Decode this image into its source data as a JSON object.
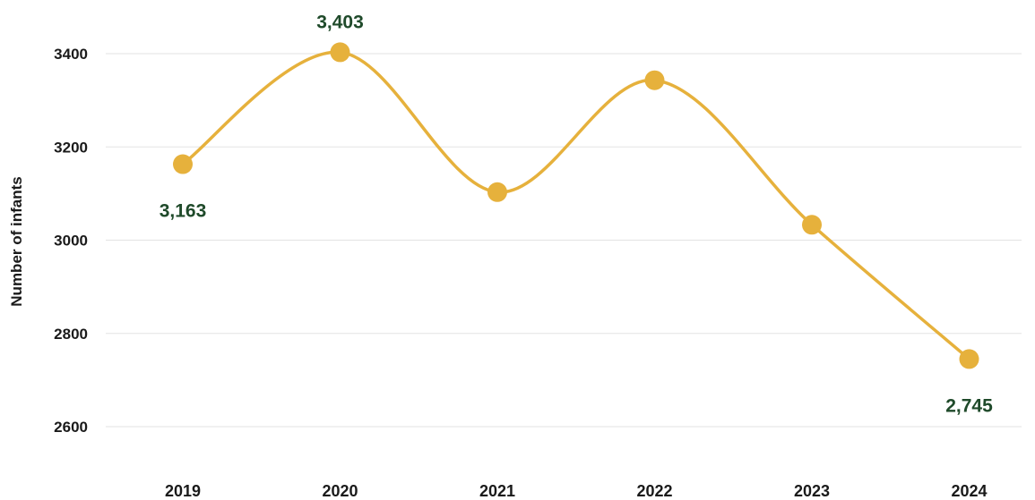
{
  "chart_data": {
    "type": "line",
    "title": "",
    "xlabel": "",
    "ylabel": "Number of infants",
    "categories": [
      "2019",
      "2020",
      "2021",
      "2022",
      "2023",
      "2024"
    ],
    "series": [
      {
        "values": [
          3163,
          3403,
          3103,
          3343,
          3033,
          2745
        ]
      }
    ],
    "data_labels": [
      {
        "index": 0,
        "text": "3,163",
        "position": "below"
      },
      {
        "index": 1,
        "text": "3,403",
        "position": "above"
      },
      {
        "index": 5,
        "text": "2,745",
        "position": "below"
      }
    ],
    "ylim": [
      2600,
      3400
    ],
    "yticks": [
      "2600",
      "2800",
      "3000",
      "3200",
      "3400"
    ],
    "grid": true,
    "legend": "none",
    "colors": {
      "line": "#e6b13c",
      "marker": "#e6b13c",
      "label": "#1f4a2a",
      "grid": "#e3e3e3"
    }
  }
}
